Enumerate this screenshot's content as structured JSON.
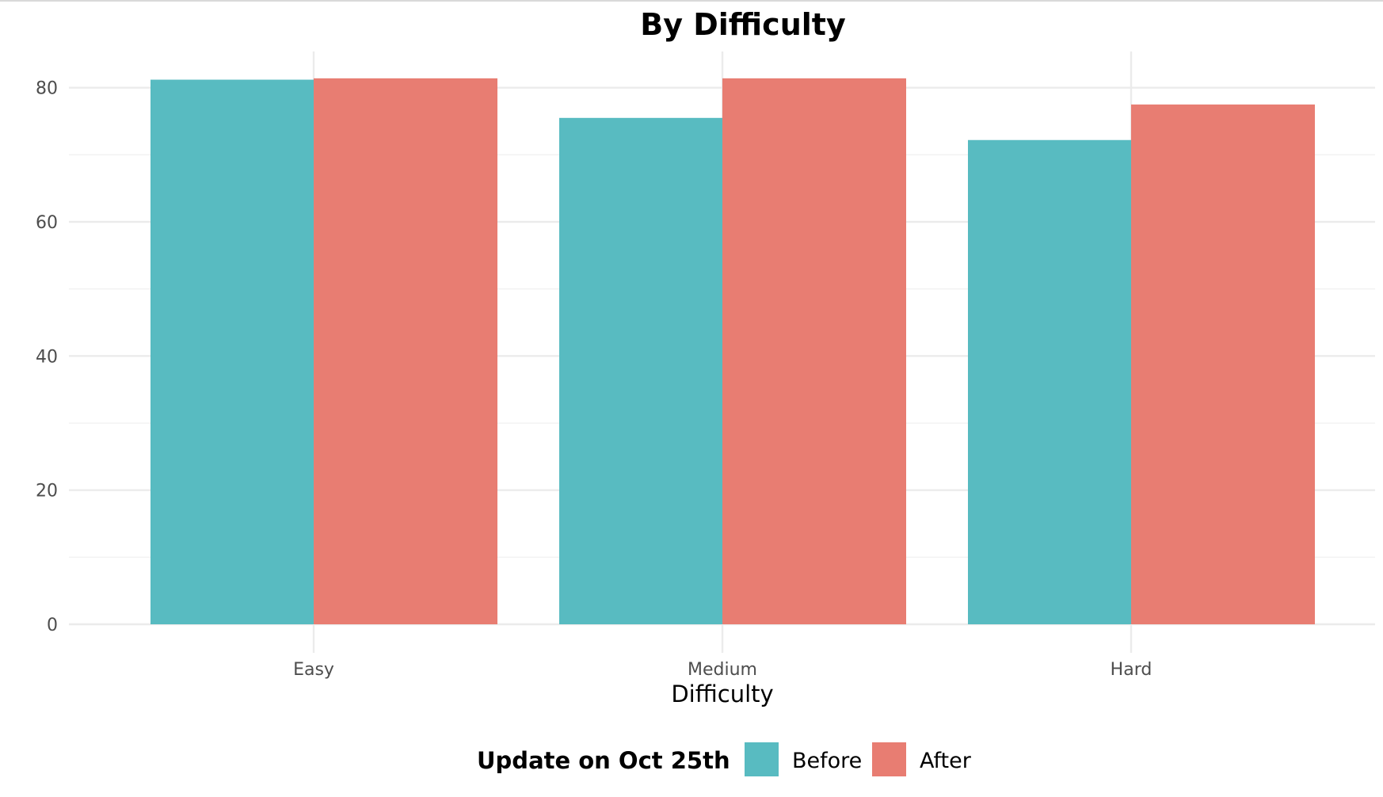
{
  "chart_data": {
    "type": "bar",
    "title": "By Difficulty",
    "xlabel": "Difficulty",
    "ylabel": "",
    "categories": [
      "Easy",
      "Medium",
      "Hard"
    ],
    "series": [
      {
        "name": "Before",
        "values": [
          81.2,
          75.5,
          72.2
        ],
        "color": "#58bbc1"
      },
      {
        "name": "After",
        "values": [
          81.4,
          81.4,
          77.5
        ],
        "color": "#e87d72"
      }
    ],
    "ylim": [
      0,
      85.4
    ],
    "yticks": [
      0,
      20,
      40,
      60,
      80
    ],
    "grid": true,
    "legend": {
      "title": "Update on Oct 25th",
      "position": "bottom"
    }
  }
}
